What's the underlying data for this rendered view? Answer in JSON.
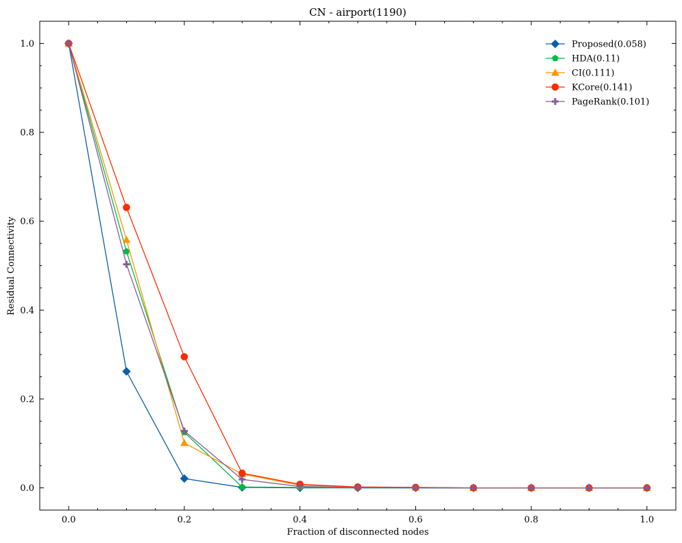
{
  "chart_data": {
    "type": "line",
    "title": "CN - airport(1190)",
    "xlabel": "Fraction of disconnected nodes",
    "ylabel": "Residual Connectivity",
    "xlim": [
      -0.05,
      1.05
    ],
    "ylim": [
      -0.05,
      1.05
    ],
    "xticks": [
      0.0,
      0.2,
      0.4,
      0.6,
      0.8,
      1.0
    ],
    "yticks": [
      0.0,
      0.2,
      0.4,
      0.6,
      0.8,
      1.0
    ],
    "xtick_labels": [
      "0.0",
      "0.2",
      "0.4",
      "0.6",
      "0.8",
      "1.0"
    ],
    "ytick_labels": [
      "0.0",
      "0.2",
      "0.4",
      "0.6",
      "0.8",
      "1.0"
    ],
    "grid": false,
    "legend_position": "top-right",
    "x": [
      0.0,
      0.1,
      0.2,
      0.3,
      0.4,
      0.5,
      0.6,
      0.7,
      0.8,
      0.9,
      1.0
    ],
    "series": [
      {
        "name": "Proposed(0.058)",
        "color": "#0c5da5",
        "marker": "diamond",
        "values": [
          1.0,
          0.262,
          0.021,
          0.001,
          0.0,
          0.0,
          0.0,
          0.0,
          0.0,
          0.0,
          0.0
        ]
      },
      {
        "name": "HDA(0.11)",
        "color": "#00b945",
        "marker": "pentagon",
        "values": [
          1.0,
          0.532,
          0.125,
          0.002,
          0.001,
          0.0,
          0.0,
          0.0,
          0.0,
          0.0,
          0.0
        ]
      },
      {
        "name": "CI(0.111)",
        "color": "#ff9500",
        "marker": "triangle",
        "values": [
          1.0,
          0.558,
          0.101,
          0.031,
          0.006,
          0.002,
          0.001,
          0.0,
          0.0,
          0.0,
          0.0
        ]
      },
      {
        "name": "KCore(0.141)",
        "color": "#ff2c00",
        "marker": "circle",
        "values": [
          1.0,
          0.631,
          0.295,
          0.033,
          0.008,
          0.002,
          0.001,
          0.0,
          0.0,
          0.0,
          0.0
        ]
      },
      {
        "name": "PageRank(0.101)",
        "color": "#845b97",
        "marker": "plus",
        "values": [
          1.0,
          0.503,
          0.128,
          0.019,
          0.003,
          0.001,
          0.0,
          0.0,
          0.0,
          0.0,
          0.0
        ]
      }
    ]
  }
}
